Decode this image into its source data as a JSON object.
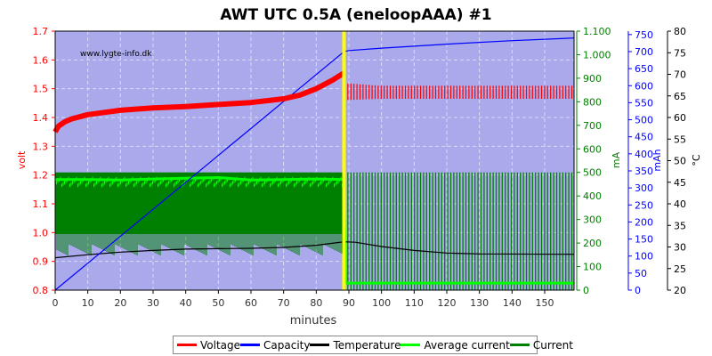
{
  "chart_data": {
    "type": "line",
    "title": "AWT UTC 0.5A (eneloopAAA) #1",
    "watermark": "www.lygte-info.dk",
    "xlabel": "minutes",
    "x_ticks": [
      "0",
      "10",
      "20",
      "30",
      "40",
      "50",
      "60",
      "70",
      "80",
      "90",
      "100",
      "110",
      "120",
      "130",
      "140",
      "150"
    ],
    "xlim": [
      0,
      159
    ],
    "charge_end_minute": 88.5,
    "axes": {
      "volt": {
        "label": "volt",
        "color": "#ff0000",
        "range": [
          0.8,
          1.7
        ],
        "ticks": [
          "0.8",
          "0.9",
          "1.0",
          "1.1",
          "1.2",
          "1.3",
          "1.4",
          "1.5",
          "1.6",
          "1.7"
        ]
      },
      "mA": {
        "label": "mA",
        "color": "#008000",
        "range": [
          0,
          1100
        ],
        "ticks": [
          "0",
          "100",
          "200",
          "300",
          "400",
          "500",
          "600",
          "700",
          "800",
          "900",
          "1.000",
          "1.100"
        ]
      },
      "mAh": {
        "label": "mAh",
        "color": "#0000ff",
        "range": [
          0,
          760
        ],
        "ticks": [
          "0",
          "50",
          "100",
          "150",
          "200",
          "250",
          "300",
          "350",
          "400",
          "450",
          "500",
          "550",
          "600",
          "650",
          "700",
          "750"
        ]
      },
      "temp": {
        "label": "°C",
        "color": "#000000",
        "range": [
          20,
          80
        ],
        "ticks": [
          "20",
          "25",
          "30",
          "35",
          "40",
          "45",
          "50",
          "55",
          "60",
          "65",
          "70",
          "75",
          "80"
        ]
      }
    },
    "series": [
      {
        "name": "Voltage",
        "color": "#ff0000",
        "axis": "volt",
        "x": [
          0,
          1,
          3,
          5,
          10,
          20,
          30,
          40,
          50,
          60,
          70,
          75,
          80,
          85,
          88.5,
          89,
          90,
          95,
          100,
          120,
          140,
          159
        ],
        "y": [
          1.35,
          1.37,
          1.385,
          1.395,
          1.41,
          1.425,
          1.433,
          1.438,
          1.445,
          1.452,
          1.465,
          1.478,
          1.5,
          1.53,
          1.555,
          1.5,
          1.49,
          1.48,
          1.48,
          1.48,
          1.48,
          1.48
        ]
      },
      {
        "name": "Capacity",
        "color": "#0000ff",
        "axis": "mAh",
        "x": [
          0,
          88.5,
          90,
          100,
          120,
          140,
          159
        ],
        "y": [
          0,
          700,
          703,
          710,
          722,
          732,
          740
        ]
      },
      {
        "name": "Temperature",
        "color": "#000000",
        "axis": "temp",
        "x": [
          0,
          10,
          20,
          30,
          40,
          50,
          60,
          70,
          80,
          88.5,
          92,
          100,
          110,
          120,
          130,
          159
        ],
        "y": [
          27.5,
          28.2,
          28.8,
          29.2,
          29.5,
          29.6,
          29.7,
          29.9,
          30.4,
          31.2,
          31.1,
          30.1,
          29.2,
          28.6,
          28.4,
          28.3
        ]
      },
      {
        "name": "Average current",
        "color": "#00ff00",
        "axis": "mA",
        "x": [
          0,
          10,
          20,
          30,
          40,
          50,
          60,
          70,
          80,
          88.5,
          89,
          159
        ],
        "y": [
          470,
          470,
          468,
          472,
          475,
          478,
          468,
          470,
          472,
          470,
          30,
          30
        ]
      },
      {
        "name": "Current",
        "color": "#008000",
        "axis": "mA",
        "x": [
          0,
          88.5,
          89,
          159
        ],
        "y": [
          500,
          500,
          500,
          500
        ]
      }
    ],
    "legend_position": "bottom"
  }
}
